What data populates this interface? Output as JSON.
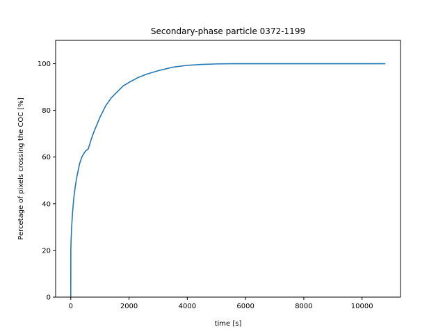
{
  "chart_data": {
    "type": "line",
    "title": "Secondary-phase particle 0372-1199",
    "xlabel": "time [s]",
    "ylabel": "Percetage of pixels crossing the COC [%]",
    "xlim": [
      -520,
      11320
    ],
    "ylim": [
      0,
      110
    ],
    "xticks": [
      0,
      2000,
      4000,
      6000,
      8000,
      10000
    ],
    "yticks": [
      0,
      20,
      40,
      60,
      80,
      100
    ],
    "grid": false,
    "series": [
      {
        "color": "#1f77b4",
        "x": [
          0,
          2,
          10,
          30,
          60,
          100,
          150,
          200,
          250,
          300,
          350,
          400,
          450,
          500,
          550,
          600,
          650,
          700,
          800,
          900,
          1000,
          1200,
          1400,
          1600,
          1800,
          2000,
          2300,
          2600,
          3000,
          3500,
          4000,
          4500,
          5000,
          5500,
          6000,
          7000,
          8000,
          9000,
          10000,
          10800
        ],
        "y": [
          0,
          20,
          24,
          30,
          36,
          42,
          47,
          51,
          54,
          57,
          59,
          60.5,
          61.5,
          62.5,
          63,
          63.5,
          65.5,
          67.5,
          71,
          74,
          77,
          82,
          85.5,
          88,
          90.5,
          92,
          94,
          95.5,
          97,
          98.5,
          99.3,
          99.7,
          99.9,
          100,
          100,
          100,
          100,
          100,
          100,
          100
        ]
      }
    ]
  }
}
